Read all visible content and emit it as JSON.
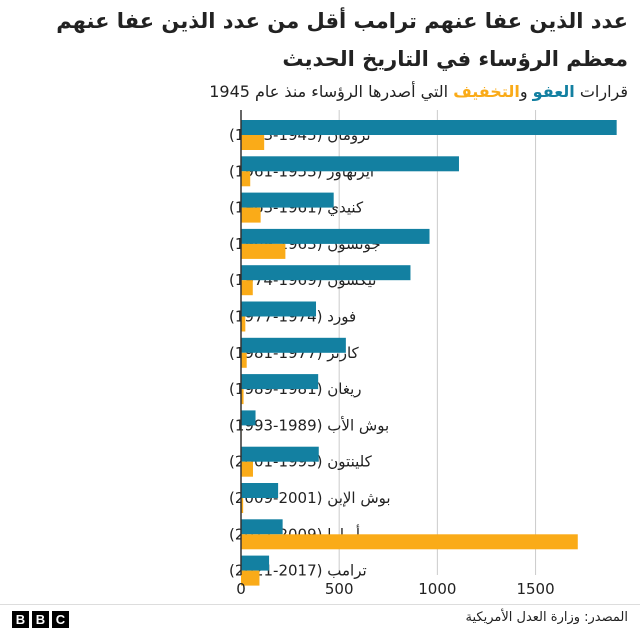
{
  "chart_data": {
    "type": "bar",
    "orientation": "horizontal",
    "title": "عدد الذين عفا عنهم ترامب أقل من عدد الذين عفا عنهم معظم الرؤساء في التاريخ الحديث",
    "subtitle": {
      "prefix": "قرارات ",
      "pardon_word": "العفو",
      "conj": " و",
      "commute_word": "التخفيف",
      "suffix": " التي أصدرها الرؤساء منذ عام 1945"
    },
    "categories": [
      "ترومان (1945-1953)",
      "أيزنهاور (1953-1961)",
      "كنيدي (1961-1963)",
      "جونسون (1963-1969)",
      "نيكسون (1969-1974)",
      "فورد (1974-1977)",
      "كارتر (1977-1981)",
      "ريغان (1981-1989)",
      "بوش الأب (1989-1993)",
      "كلينتون (1993-2001)",
      "بوش الإبن (2001-2009)",
      "أوباما (2009-2017)",
      "ترامب (2017-2021)"
    ],
    "series": [
      {
        "name": "العفو",
        "color": "#1380A1",
        "values": [
          1913,
          1110,
          472,
          960,
          863,
          382,
          534,
          393,
          74,
          396,
          189,
          212,
          143
        ]
      },
      {
        "name": "التخفيف",
        "color": "#FAAB18",
        "values": [
          118,
          47,
          100,
          226,
          60,
          22,
          29,
          13,
          3,
          61,
          11,
          1715,
          94
        ]
      }
    ],
    "xlim": [
      0,
      1930
    ],
    "xticks": [
      0,
      500,
      1000,
      1500
    ],
    "grid": true
  },
  "footer": {
    "source": "المصدر: وزارة العدل الأمريكية",
    "logo_letters": [
      "B",
      "B",
      "C"
    ]
  }
}
